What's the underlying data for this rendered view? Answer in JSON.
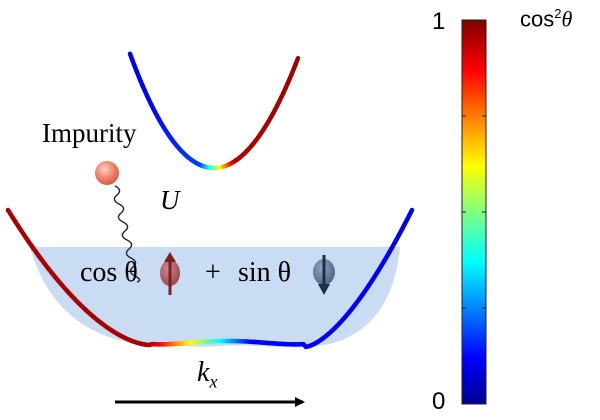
{
  "labels": {
    "impurity": "Impurity",
    "coupling": "U",
    "cos_term": "cos θ",
    "plus": "+",
    "sin_term": "sin θ",
    "momentum_axis": "k",
    "momentum_axis_sub": "x"
  },
  "colorbar": {
    "title_base": "cos",
    "title_sup": "2",
    "title_tail": "θ",
    "max_label": "1",
    "min_label": "0",
    "colormap": [
      "#00008f",
      "#0000ff",
      "#00ffff",
      "#7fff7f",
      "#ffff00",
      "#ff0000",
      "#7f0000"
    ]
  },
  "colors": {
    "fermi_sea": "#c9dcf3",
    "impurity_ball": "#f08870",
    "spin_up": "#a04040",
    "spin_down": "#455a7a"
  }
}
